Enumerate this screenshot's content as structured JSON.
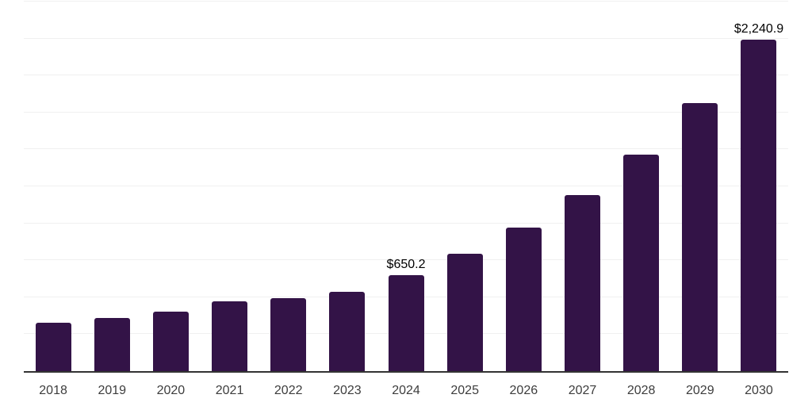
{
  "chart_data": {
    "type": "bar",
    "title": "",
    "categories": [
      "2018",
      "2019",
      "2020",
      "2021",
      "2022",
      "2023",
      "2024",
      "2025",
      "2026",
      "2027",
      "2028",
      "2029",
      "2030"
    ],
    "values": [
      325,
      357,
      400,
      474,
      495,
      538,
      650.2,
      794,
      970,
      1193,
      1465,
      1811,
      2240.9
    ],
    "data_labels": [
      null,
      null,
      null,
      null,
      null,
      null,
      "$650.2",
      null,
      null,
      null,
      null,
      null,
      "$2,240.9"
    ],
    "xlabel": "",
    "ylabel": "",
    "ylim": [
      0,
      2500
    ],
    "gridline_step": 250,
    "grid": "horizontal",
    "legend_position": "none",
    "colors": {
      "bar": "#331347",
      "gridline": "#f0f0f0",
      "axis_line": "#333333",
      "tick_label": "#3d3d3d",
      "data_label": "#000000",
      "background": "#ffffff"
    }
  }
}
